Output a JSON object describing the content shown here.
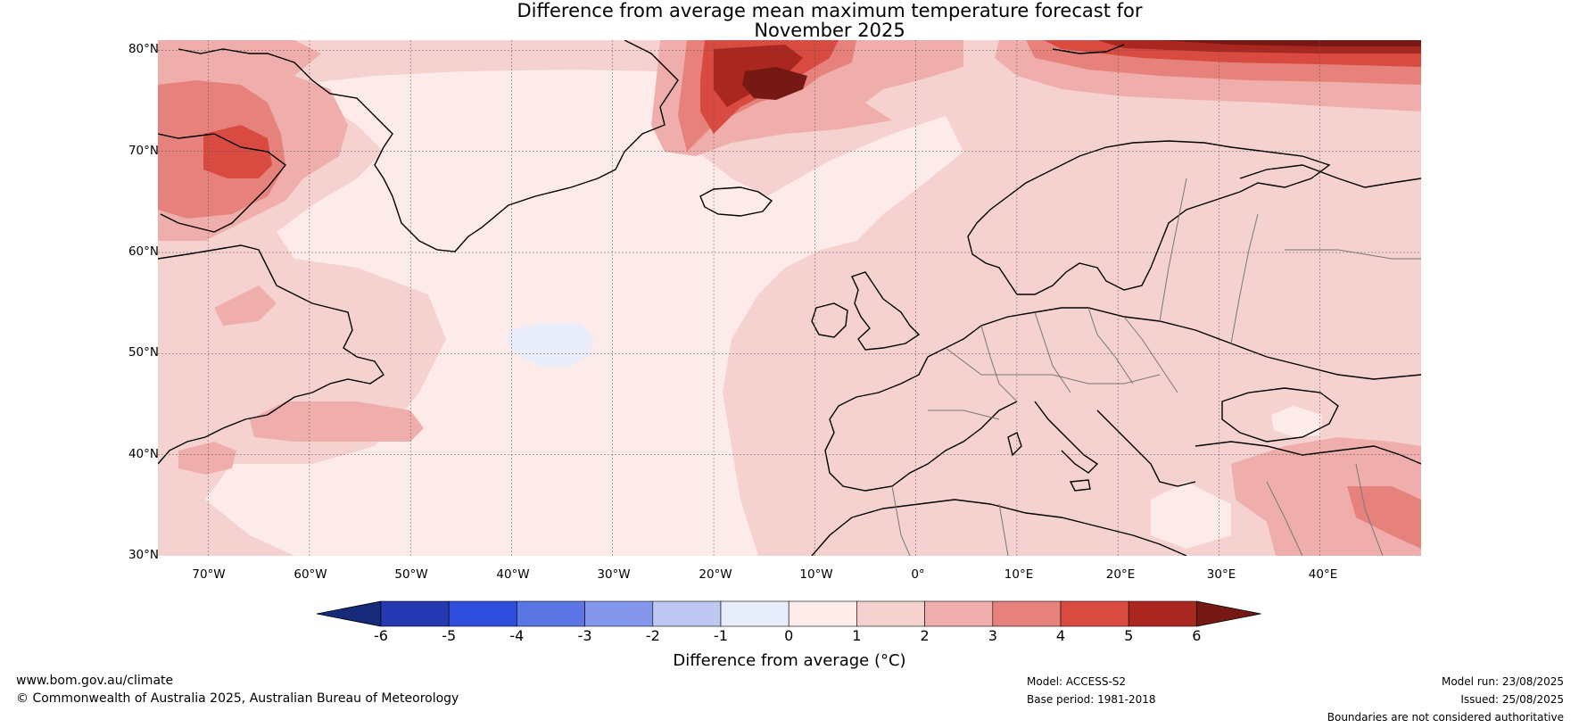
{
  "title": {
    "line1": "Difference from average mean maximum temperature forecast for",
    "line2": "November 2025"
  },
  "map": {
    "latitude_labels": [
      "80°N",
      "70°N",
      "60°N",
      "50°N",
      "40°N",
      "30°N"
    ],
    "longitude_labels": [
      "70°W",
      "60°W",
      "50°W",
      "40°W",
      "30°W",
      "20°W",
      "10°W",
      "0°",
      "10°E",
      "20°E",
      "30°E",
      "40°E"
    ],
    "lat_range": [
      30,
      81
    ],
    "lon_range": [
      -75,
      50
    ]
  },
  "colorbar": {
    "label": "Difference from average (°C)",
    "ticks": [
      "-6",
      "-5",
      "-4",
      "-3",
      "-2",
      "-1",
      "0",
      "1",
      "2",
      "3",
      "4",
      "5",
      "6"
    ],
    "colors": [
      "#172a7a",
      "#2539b0",
      "#2f4ddc",
      "#5c76e6",
      "#8597ec",
      "#bfc8f3",
      "#e8ecfb",
      "#fcebe8",
      "#f5d2d0",
      "#efaeab",
      "#e6827b",
      "#d94a40",
      "#a9271f",
      "#761914"
    ]
  },
  "footer": {
    "website": "www.bom.gov.au/climate",
    "copyright": "© Commonwealth of Australia 2025, Australian Bureau of Meteorology",
    "model": "Model: ACCESS-S2",
    "base_period": "Base period: 1981-2018",
    "model_run": "Model run: 23/08/2025",
    "issued": "Issued: 25/08/2025",
    "disclaimer": "Boundaries are not considered authoritative"
  }
}
